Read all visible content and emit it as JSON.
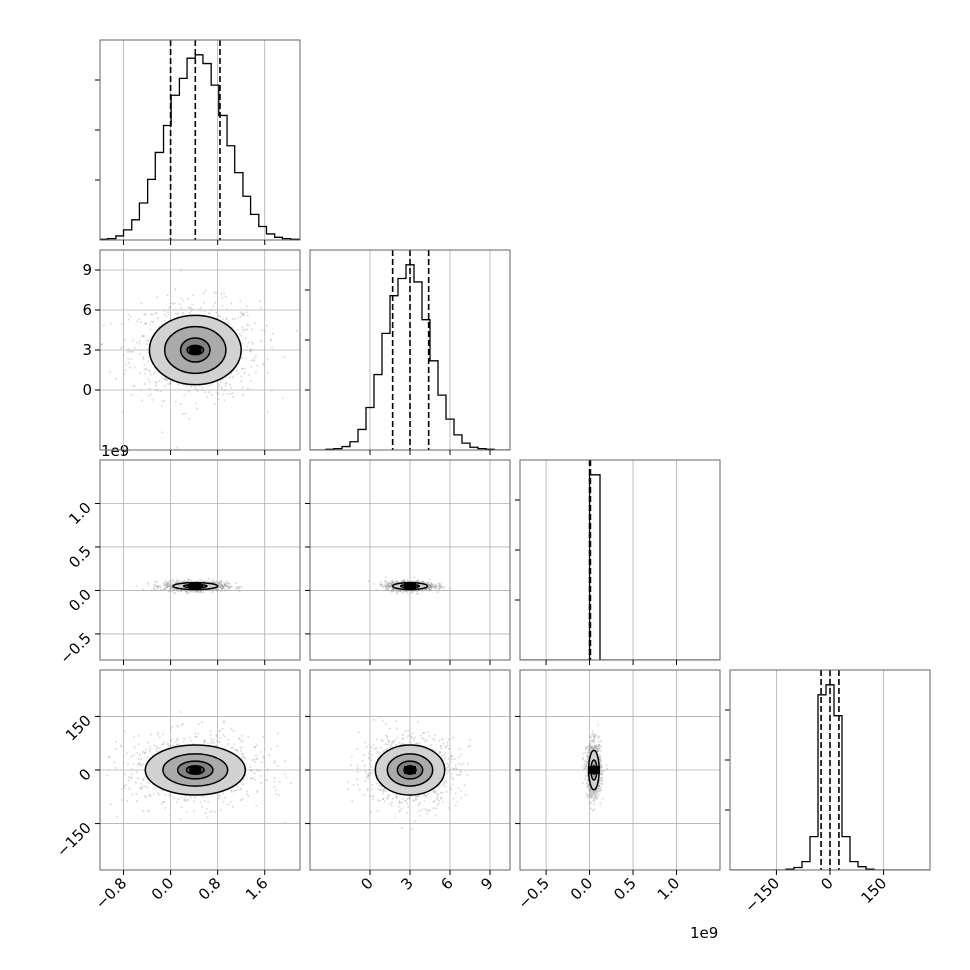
{
  "chart_data": {
    "type": "corner",
    "grid": true,
    "colors": {
      "hist": "#000000",
      "points": "#9a9a9a",
      "contour": "#000000",
      "grid": "#b0b0b0"
    },
    "params": [
      {
        "range": [
          -1.2,
          2.2
        ],
        "ticks": [
          -0.8,
          0.0,
          0.8,
          1.6
        ],
        "tick_labels": [
          "−0.8",
          "0.0",
          "0.8",
          "1.6"
        ],
        "quantiles": [
          0.0,
          0.42,
          0.84
        ],
        "mean": 0.42,
        "sd": 0.4
      },
      {
        "range": [
          -4.5,
          10.5
        ],
        "ticks": [
          0,
          3,
          6,
          9
        ],
        "tick_labels": [
          "0",
          "3",
          "6",
          "9"
        ],
        "quantiles": [
          1.7,
          3.0,
          4.4
        ],
        "mean": 3.0,
        "sd": 1.3
      },
      {
        "range": [
          -0.8,
          1.5
        ],
        "ticks": [
          -0.5,
          0.0,
          0.5,
          1.0
        ],
        "tick_labels": [
          "−0.5",
          "0.0",
          "0.5",
          "1.0"
        ],
        "offset_label": "1e9",
        "quantiles": [
          0.0,
          0.005,
          0.01
        ]
      },
      {
        "range": [
          -280,
          280
        ],
        "ticks": [
          -150,
          0,
          150
        ],
        "tick_labels": [
          "−150",
          "0",
          "150"
        ],
        "quantiles": [
          -25,
          0,
          25
        ],
        "mean": 0,
        "sd": 28
      }
    ],
    "histograms": [
      {
        "param": 0,
        "bin_edges": [
          -1.2,
          -1.07,
          -0.93,
          -0.8,
          -0.66,
          -0.53,
          -0.39,
          -0.26,
          -0.12,
          0.01,
          0.15,
          0.28,
          0.42,
          0.55,
          0.69,
          0.82,
          0.96,
          1.09,
          1.23,
          1.36,
          1.5,
          1.63,
          1.77,
          1.9,
          2.04,
          2.2
        ],
        "counts": [
          1,
          2,
          6,
          15,
          30,
          55,
          90,
          130,
          170,
          215,
          240,
          270,
          275,
          262,
          230,
          185,
          140,
          100,
          65,
          38,
          20,
          9,
          4,
          2,
          1
        ]
      },
      {
        "param": 1,
        "bin_edges": [
          -4.5,
          -3.9,
          -3.3,
          -2.7,
          -2.1,
          -1.5,
          -0.9,
          -0.3,
          0.3,
          0.9,
          1.5,
          2.1,
          2.7,
          3.3,
          3.9,
          4.5,
          5.1,
          5.7,
          6.3,
          6.9,
          7.5,
          8.1,
          8.7,
          9.3,
          9.9,
          10.5
        ],
        "counts": [
          0,
          0,
          1,
          2,
          5,
          12,
          30,
          62,
          110,
          170,
          225,
          250,
          270,
          245,
          190,
          130,
          80,
          45,
          22,
          10,
          4,
          2,
          1,
          0,
          0
        ]
      },
      {
        "param": 2,
        "bin_edges": [
          -0.8,
          0.0,
          0.12,
          1.5
        ],
        "counts": [
          0,
          100,
          0
        ]
      },
      {
        "param": 3,
        "bin_edges": [
          -280,
          -257.6,
          -235.2,
          -212.8,
          -190.4,
          -168,
          -145.6,
          -123.2,
          -100.8,
          -78.4,
          -56,
          -33.6,
          -11.2,
          11.2,
          33.6,
          56,
          78.4,
          100.8,
          123.2,
          145.6,
          168,
          190.4,
          212.8,
          235.2,
          257.6,
          280
        ],
        "counts": [
          0,
          0,
          0,
          0,
          0,
          0,
          0,
          1,
          3,
          10,
          40,
          210,
          222,
          185,
          40,
          10,
          4,
          1,
          0,
          0,
          0,
          0,
          0,
          0,
          0
        ]
      }
    ],
    "pairs": [
      {
        "x": 0,
        "y": 1,
        "center": [
          0.42,
          3.0
        ],
        "contour_radii": [
          [
            0.14,
            0.35
          ],
          [
            0.25,
            0.9
          ],
          [
            0.52,
            1.75
          ],
          [
            0.78,
            2.6
          ]
        ]
      },
      {
        "x": 0,
        "y": 2,
        "center": [
          0.42,
          0.05
        ],
        "contour_radii": [
          [
            0.12,
            0.008
          ],
          [
            0.2,
            0.018
          ],
          [
            0.38,
            0.04
          ]
        ]
      },
      {
        "x": 1,
        "y": 2,
        "center": [
          3.0,
          0.05
        ],
        "contour_radii": [
          [
            0.4,
            0.008
          ],
          [
            0.7,
            0.018
          ],
          [
            1.3,
            0.04
          ]
        ]
      },
      {
        "x": 0,
        "y": 3,
        "center": [
          0.42,
          0
        ],
        "contour_radii": [
          [
            0.15,
            12
          ],
          [
            0.3,
            25
          ],
          [
            0.55,
            45
          ],
          [
            0.85,
            70
          ]
        ]
      },
      {
        "x": 1,
        "y": 3,
        "center": [
          3.0,
          0
        ],
        "contour_radii": [
          [
            0.45,
            12
          ],
          [
            0.95,
            25
          ],
          [
            1.7,
            45
          ],
          [
            2.6,
            70
          ]
        ]
      },
      {
        "x": 2,
        "y": 3,
        "center": [
          0.05,
          0
        ],
        "contour_radii": [
          [
            0.02,
            12
          ],
          [
            0.035,
            28
          ],
          [
            0.06,
            55
          ]
        ]
      }
    ]
  }
}
